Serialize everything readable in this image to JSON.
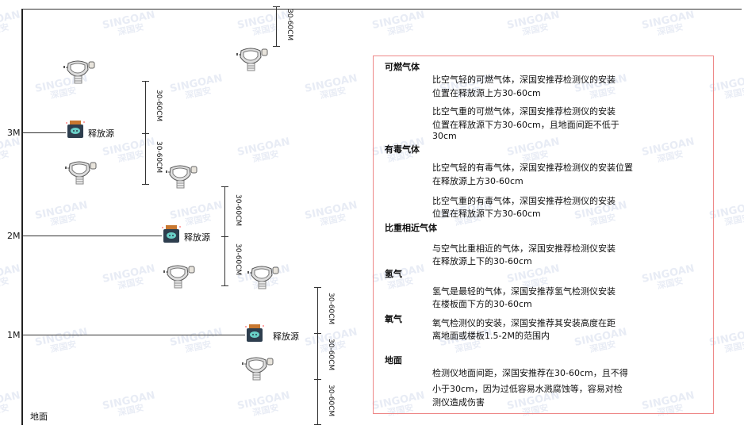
{
  "watermark": {
    "brand": "SINGOAN",
    "cn": "深国安"
  },
  "levels": {
    "l3": "3M",
    "l2": "2M",
    "l1": "1M",
    "ground": "地面"
  },
  "source_label": "释放源",
  "dimension": "30-60CM",
  "notes": {
    "flammable": {
      "title": "可燃气体",
      "p1": [
        "比空气轻的可燃气体，深国安推荐检测仪的安装",
        "位置在释放源上方30-60cm"
      ],
      "p2": [
        "比空气重的可燃气体，深国安推荐检测仪的安装",
        "位置在释放源下方30-60cm，且地面间距不低于",
        "30cm"
      ]
    },
    "toxic": {
      "title": "有毒气体",
      "p1": [
        "比空气轻的有毒气体，深国安推荐检测仪的安装位置",
        "在释放源上方30-60cm"
      ],
      "p2": [
        "比空气重的有毒气体，深国安推荐检测仪的安装",
        "位置在释放源下方30-60cm"
      ]
    },
    "similar": {
      "title": "比重相近气体",
      "p1": [
        "与空气比重相近的气体，深国安推荐检测仪安装",
        "在释放源上下的30-60cm"
      ]
    },
    "hydrogen": {
      "title": "氢气",
      "p1": [
        "氢气是最轻的气体，深国安推荐氢气检测仪安装",
        "在楼板面下方的30-60cm"
      ]
    },
    "oxygen": {
      "title": "氧气",
      "p1": [
        "氧气检测仪的安装，深国安推荐其安装高度在距",
        "离地面或楼板1.5-2M的范围内"
      ]
    },
    "ground": {
      "title": "地面",
      "p1": [
        "检测仪地面间距，深国安推荐在30-60cm，且不得",
        "小于30cm，因为过低容易水溅腐蚀等，容易对检",
        "测仪造成伤害"
      ]
    }
  },
  "colors": {
    "box_border": "#ee8888",
    "source_body": "#2e3e4e",
    "source_cap": "#c87830",
    "source_icon": "#6ad0c8"
  }
}
